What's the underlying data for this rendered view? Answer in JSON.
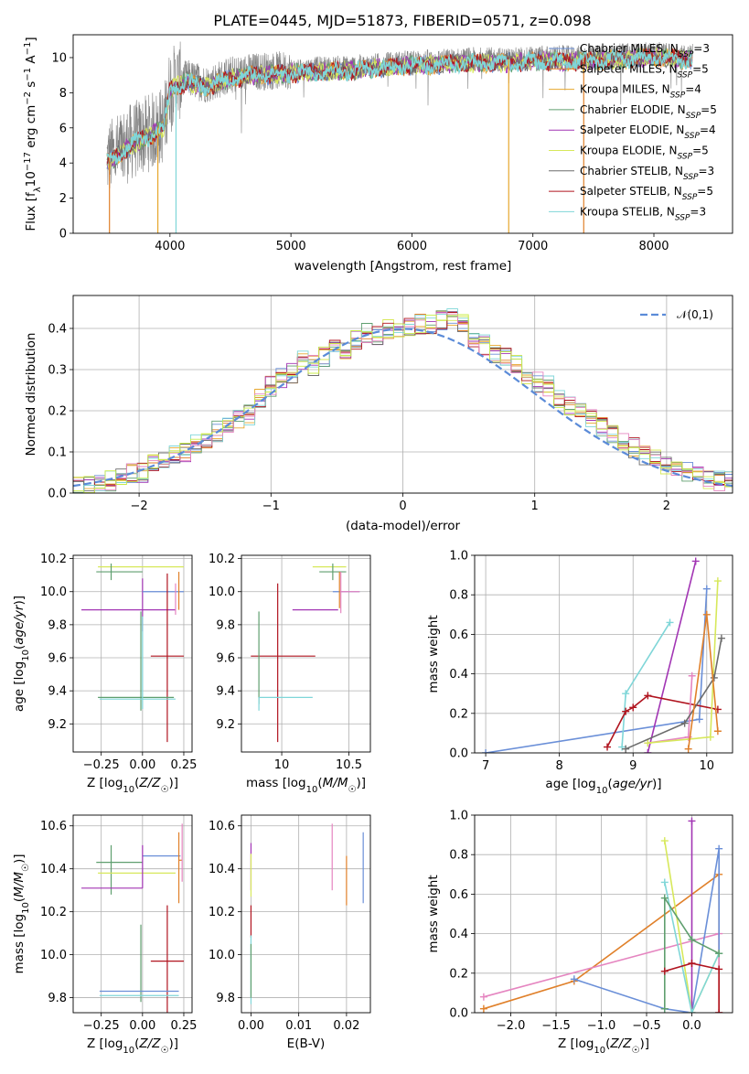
{
  "title": "PLATE=0445, MJD=51873, FIBERID=0571, z=0.098",
  "colors": {
    "Chabrier MILES": "#6a8fd8",
    "Salpeter MILES": "#e0802a",
    "Kroupa MILES": "#e7a72e",
    "Chabrier ELODIE": "#5f9f6f",
    "Salpeter ELODIE": "#a235b4",
    "Kroupa ELODIE": "#d7e85b",
    "Chabrier STELIB": "#6c6c6c",
    "Salpeter STELIB": "#b0141f",
    "Kroupa STELIB": "#7fd6d8",
    "data": "#808080",
    "pink": "#e585c0",
    "lime": "#c8ec4a",
    "normal": "#5b8bd8"
  },
  "chart_data": [
    {
      "type": "line",
      "id": "spectrum",
      "title": "PLATE=0445, MJD=51873, FIBERID=0571, z=0.098",
      "xlabel": "wavelength [Angstrom, rest frame]",
      "ylabel": "Flux [f_λ10^-17 erg cm^-2 s^-1 A^-1]",
      "xlim": [
        3200,
        8650
      ],
      "ylim": [
        0,
        11.3
      ],
      "xticks": [
        4000,
        5000,
        6000,
        7000,
        8000
      ],
      "yticks": [
        0,
        2,
        4,
        6,
        8,
        10
      ],
      "legend_position": "upper right",
      "legend": [
        {
          "label": "Chabrier MILES, N_SSP=3",
          "color": "#6a8fd8"
        },
        {
          "label": "Salpeter MILES, N_SSP=5",
          "color": "#e0802a"
        },
        {
          "label": "Kroupa MILES, N_SSP=4",
          "color": "#e7a72e"
        },
        {
          "label": "Chabrier ELODIE, N_SSP=5",
          "color": "#5f9f6f"
        },
        {
          "label": "Salpeter ELODIE, N_SSP=4",
          "color": "#a235b4"
        },
        {
          "label": "Kroupa ELODIE, N_SSP=5",
          "color": "#d7e85b"
        },
        {
          "label": "Chabrier STELIB, N_SSP=3",
          "color": "#6c6c6c"
        },
        {
          "label": "Salpeter STELIB, N_SSP=5",
          "color": "#b0141f"
        },
        {
          "label": "Kroupa STELIB, N_SSP=3",
          "color": "#7fd6d8"
        }
      ],
      "continuum": {
        "x": [
          3480,
          3600,
          3700,
          3850,
          3950,
          4000,
          4050,
          4150,
          4300,
          4500,
          4700,
          5000,
          5300,
          5600,
          5900,
          6200,
          6500,
          6800,
          7100,
          7400,
          7700,
          8000,
          8300
        ],
        "y": [
          4.2,
          4.8,
          5.3,
          5.8,
          6.2,
          8.4,
          8.6,
          8.8,
          8.5,
          9.0,
          9.2,
          9.3,
          9.4,
          9.5,
          9.7,
          9.8,
          9.9,
          9.9,
          10.0,
          10.0,
          10.1,
          10.2,
          10.1
        ]
      }
    },
    {
      "type": "bar",
      "id": "residuals",
      "xlabel": "(data-model)/error",
      "ylabel": "Normed distribution",
      "xlim": [
        -2.5,
        2.5
      ],
      "ylim": [
        0,
        0.48
      ],
      "xticks": [
        -2,
        -1,
        0,
        1,
        2
      ],
      "yticks": [
        0.0,
        0.1,
        0.2,
        0.3,
        0.4
      ],
      "legend": [
        {
          "label": "𝒩(0,1)",
          "color": "#5b8bd8"
        }
      ],
      "bin_width": 0.1,
      "bin_start": -2.5,
      "histogram_envelope": [
        0.02,
        0.02,
        0.03,
        0.03,
        0.04,
        0.05,
        0.05,
        0.07,
        0.08,
        0.09,
        0.1,
        0.12,
        0.13,
        0.15,
        0.17,
        0.18,
        0.19,
        0.23,
        0.26,
        0.28,
        0.29,
        0.32,
        0.31,
        0.33,
        0.35,
        0.34,
        0.37,
        0.39,
        0.38,
        0.4,
        0.4,
        0.4,
        0.41,
        0.41,
        0.42,
        0.43,
        0.41,
        0.38,
        0.36,
        0.34,
        0.33,
        0.31,
        0.29,
        0.27,
        0.26,
        0.23,
        0.21,
        0.2,
        0.18,
        0.16,
        0.14,
        0.12,
        0.11,
        0.09,
        0.08,
        0.07,
        0.06,
        0.05,
        0.04,
        0.03,
        0.03,
        0.03
      ]
    },
    {
      "type": "scatter",
      "id": "age_vs_Z",
      "xlabel": "Z [log10(Z/Z☉)]",
      "ylabel": "age  [log10(age/yr)]",
      "xlim": [
        -0.42,
        0.3
      ],
      "ylim": [
        9.03,
        10.22
      ],
      "xticks": [
        -0.25,
        0.0,
        0.25
      ],
      "xticklabels": [
        "−0.25",
        "0.00",
        "0.25"
      ],
      "yticks": [
        9.2,
        9.4,
        9.6,
        9.8,
        10.0,
        10.2
      ],
      "errorbars": [
        {
          "color": "#d7e85b",
          "x": 0.0,
          "xerr": [
            0.27,
            0.25
          ],
          "y": 10.15,
          "yerr": [
            0.0,
            0.0
          ]
        },
        {
          "color": "#5f9f6f",
          "x": -0.19,
          "xerr": [
            0.09,
            0.19
          ],
          "y": 10.12,
          "yerr": [
            0.05,
            0.05
          ]
        },
        {
          "color": "#a235b4",
          "x": 0.0,
          "xerr": [
            0.37,
            0.2
          ],
          "y": 9.89,
          "yerr": [
            0.13,
            0.19
          ]
        },
        {
          "color": "#6a8fd8",
          "x": 0.05,
          "xerr": [
            0.05,
            0.2
          ],
          "y": 10.0,
          "yerr": [
            0.0,
            0.0
          ]
        },
        {
          "color": "#e0802a",
          "x": 0.22,
          "xerr": [
            0.0,
            0.0
          ],
          "y": 10.0,
          "yerr": [
            0.11,
            0.12
          ]
        },
        {
          "color": "#e585c0",
          "x": 0.2,
          "xerr": [
            0.0,
            0.0
          ],
          "y": 10.0,
          "yerr": [
            0.14,
            0.05
          ]
        },
        {
          "color": "#b0141f",
          "x": 0.15,
          "xerr": [
            0.1,
            0.1
          ],
          "y": 9.61,
          "yerr": [
            0.52,
            0.5
          ]
        },
        {
          "color": "#5f9f6f",
          "x": -0.01,
          "xerr": [
            0.26,
            0.2
          ],
          "y": 9.36,
          "yerr": [
            0.08,
            0.52
          ]
        },
        {
          "color": "#7fd6d8",
          "x": 0.0,
          "xerr": [
            0.26,
            0.2
          ],
          "y": 9.35,
          "yerr": [
            0.06,
            0.5
          ]
        }
      ]
    },
    {
      "type": "scatter",
      "id": "age_vs_mass",
      "xlabel": "mass [log10(M/M☉)]",
      "ylabel": "",
      "xlim": [
        9.7,
        10.66
      ],
      "ylim": [
        9.03,
        10.22
      ],
      "xticks": [
        10.0,
        10.5
      ],
      "yticks": [
        9.2,
        9.4,
        9.6,
        9.8,
        10.0,
        10.2
      ],
      "errorbars": [
        {
          "color": "#d7e85b",
          "x": 10.38,
          "xerr": [
            0.15,
            0.1
          ],
          "y": 10.15,
          "yerr": [
            0.0,
            0.0
          ]
        },
        {
          "color": "#5f9f6f",
          "x": 10.38,
          "xerr": [
            0.1,
            0.1
          ],
          "y": 10.12,
          "yerr": [
            0.05,
            0.05
          ]
        },
        {
          "color": "#a235b4",
          "x": 10.32,
          "xerr": [
            0.24,
            0.1
          ],
          "y": 9.89,
          "yerr": [
            0.0,
            0.0
          ]
        },
        {
          "color": "#6a8fd8",
          "x": 10.48,
          "xerr": [
            0.1,
            0.1
          ],
          "y": 10.0,
          "yerr": [
            0.0,
            0.0
          ]
        },
        {
          "color": "#e0802a",
          "x": 10.43,
          "xerr": [
            0.0,
            0.0
          ],
          "y": 10.0,
          "yerr": [
            0.1,
            0.12
          ]
        },
        {
          "color": "#e585c0",
          "x": 10.44,
          "xerr": [
            0.0,
            0.14
          ],
          "y": 10.0,
          "yerr": [
            0.13,
            0.12
          ]
        },
        {
          "color": "#b0141f",
          "x": 9.97,
          "xerr": [
            0.2,
            0.28
          ],
          "y": 9.61,
          "yerr": [
            0.52,
            0.44
          ]
        },
        {
          "color": "#5f9f6f",
          "x": 9.83,
          "xerr": [
            0.0,
            0.0
          ],
          "y": 9.6,
          "yerr": [
            0.28,
            0.28
          ]
        },
        {
          "color": "#7fd6d8",
          "x": 9.83,
          "xerr": [
            0.0,
            0.4
          ],
          "y": 9.36,
          "yerr": [
            0.08,
            0.0
          ]
        }
      ]
    },
    {
      "type": "line",
      "id": "mass_weight_vs_age",
      "xlabel": "age  [log10(age/yr)]",
      "ylabel": "mass weight",
      "xlim": [
        6.85,
        10.35
      ],
      "ylim": [
        0.0,
        1.0
      ],
      "xticks": [
        7,
        8,
        9,
        10
      ],
      "yticks": [
        0.0,
        0.2,
        0.4,
        0.6,
        0.8,
        1.0
      ],
      "series": [
        {
          "color": "#6a8fd8",
          "x": [
            7.0,
            9.9,
            10.0
          ],
          "y": [
            0.0,
            0.17,
            0.83
          ]
        },
        {
          "color": "#7fd6d8",
          "x": [
            8.85,
            8.9,
            9.5
          ],
          "y": [
            0.03,
            0.3,
            0.66
          ]
        },
        {
          "color": "#a235b4",
          "x": [
            9.2,
            9.85
          ],
          "y": [
            0.0,
            0.97
          ]
        },
        {
          "color": "#b0141f",
          "x": [
            8.65,
            8.9,
            9.0,
            9.2,
            10.15
          ],
          "y": [
            0.03,
            0.21,
            0.23,
            0.29,
            0.22
          ]
        },
        {
          "color": "#e585c0",
          "x": [
            9.2,
            9.75,
            9.8
          ],
          "y": [
            0.05,
            0.08,
            0.39
          ]
        },
        {
          "color": "#d7e85b",
          "x": [
            9.2,
            10.05,
            10.15
          ],
          "y": [
            0.05,
            0.08,
            0.87
          ]
        },
        {
          "color": "#6c6c6c",
          "x": [
            8.9,
            9.7,
            10.1,
            10.2
          ],
          "y": [
            0.02,
            0.15,
            0.38,
            0.58
          ]
        },
        {
          "color": "#e0802a",
          "x": [
            9.75,
            10.0,
            10.15
          ],
          "y": [
            0.02,
            0.7,
            0.11
          ]
        }
      ]
    },
    {
      "type": "scatter",
      "id": "mass_vs_Z",
      "xlabel": "Z [log10(Z/Z☉)]",
      "ylabel": "mass [log10(M/M☉)]",
      "xlim": [
        -0.42,
        0.3
      ],
      "ylim": [
        9.73,
        10.65
      ],
      "xticks": [
        -0.25,
        0.0,
        0.25
      ],
      "xticklabels": [
        "−0.25",
        "0.00",
        "0.25"
      ],
      "yticks": [
        9.8,
        10.0,
        10.2,
        10.4,
        10.6
      ],
      "errorbars": [
        {
          "color": "#6a8fd8",
          "x": 0.05,
          "xerr": [
            0.05,
            0.18
          ],
          "y": 10.46,
          "yerr": [
            0.0,
            0.0
          ]
        },
        {
          "color": "#e0802a",
          "x": 0.22,
          "xerr": [
            0.0,
            0.02
          ],
          "y": 10.44,
          "yerr": [
            0.2,
            0.13
          ]
        },
        {
          "color": "#5f9f6f",
          "x": -0.19,
          "xerr": [
            0.09,
            0.19
          ],
          "y": 10.43,
          "yerr": [
            0.15,
            0.08
          ]
        },
        {
          "color": "#d7e85b",
          "x": 0.0,
          "xerr": [
            0.27,
            0.2
          ],
          "y": 10.38,
          "yerr": [
            0.0,
            0.0
          ]
        },
        {
          "color": "#a235b4",
          "x": 0.0,
          "xerr": [
            0.37,
            0.0
          ],
          "y": 10.31,
          "yerr": [
            0.0,
            0.2
          ]
        },
        {
          "color": "#e585c0",
          "x": 0.24,
          "xerr": [
            0.0,
            0.0
          ],
          "y": 10.44,
          "yerr": [
            0.1,
            0.17
          ]
        },
        {
          "color": "#b0141f",
          "x": 0.15,
          "xerr": [
            0.1,
            0.1
          ],
          "y": 9.97,
          "yerr": [
            0.25,
            0.26
          ]
        },
        {
          "color": "#5f9f6f",
          "x": -0.01,
          "xerr": [
            0.0,
            0.0
          ],
          "y": 9.95,
          "yerr": [
            0.17,
            0.19
          ]
        },
        {
          "color": "#6a8fd8",
          "x": 0.0,
          "xerr": [
            0.26,
            0.22
          ],
          "y": 9.83,
          "yerr": [
            0.0,
            0.0
          ]
        },
        {
          "color": "#7fd6d8",
          "x": 0.0,
          "xerr": [
            0.26,
            0.22
          ],
          "y": 9.81,
          "yerr": [
            0.0,
            0.0
          ]
        }
      ]
    },
    {
      "type": "scatter",
      "id": "mass_vs_EBV",
      "xlabel": "E(B-V)",
      "ylabel": "",
      "xlim": [
        -0.002,
        0.025
      ],
      "ylim": [
        9.73,
        10.65
      ],
      "xticks": [
        0.0,
        0.01,
        0.02
      ],
      "xticklabels": [
        "0.00",
        "0.01",
        "0.02"
      ],
      "yticks": [
        9.8,
        10.0,
        10.2,
        10.4,
        10.6
      ],
      "errorbars": [
        {
          "color": "#a235b4",
          "x": 0.0,
          "y": 10.4,
          "yerr": [
            0.1,
            0.12
          ]
        },
        {
          "color": "#d7e85b",
          "x": 0.0,
          "y": 10.35,
          "yerr": [
            0.08,
            0.12
          ]
        },
        {
          "color": "#b0141f",
          "x": 0.0,
          "y": 10.18,
          "yerr": [
            0.1,
            0.05
          ]
        },
        {
          "color": "#7fd6d8",
          "x": 0.0,
          "y": 9.95,
          "yerr": [
            0.18,
            0.14
          ]
        },
        {
          "color": "#5f9f6f",
          "x": 0.0,
          "y": 9.9,
          "yerr": [
            0.1,
            0.15
          ]
        },
        {
          "color": "#e585c0",
          "x": 0.017,
          "y": 10.45,
          "yerr": [
            0.15,
            0.16
          ]
        },
        {
          "color": "#e0802a",
          "x": 0.02,
          "y": 10.38,
          "yerr": [
            0.15,
            0.08
          ]
        },
        {
          "color": "#6a8fd8",
          "x": 0.0235,
          "y": 10.4,
          "yerr": [
            0.16,
            0.17
          ]
        }
      ]
    },
    {
      "type": "line",
      "id": "mass_weight_vs_Z",
      "xlabel": "Z [log10(Z/Z☉)]",
      "ylabel": "mass weight",
      "xlim": [
        -2.4,
        0.45
      ],
      "ylim": [
        0.0,
        1.0
      ],
      "xticks": [
        -2.0,
        -1.5,
        -1.0,
        -0.5,
        0.0
      ],
      "xticklabels": [
        "−2.0",
        "−1.5",
        "−1.0",
        "−0.5",
        "0.0"
      ],
      "yticks": [
        0.0,
        0.2,
        0.4,
        0.6,
        0.8,
        1.0
      ],
      "series": [
        {
          "color": "#e0802a",
          "x": [
            -2.3,
            -1.3,
            0.3,
            0.3
          ],
          "y": [
            0.02,
            0.16,
            0.7,
            0.0
          ]
        },
        {
          "color": "#e585c0",
          "x": [
            -2.3,
            0.3,
            0.3
          ],
          "y": [
            0.08,
            0.4,
            0.0
          ]
        },
        {
          "color": "#6a8fd8",
          "x": [
            -1.3,
            -0.3,
            0.0,
            0.3,
            0.3
          ],
          "y": [
            0.17,
            0.02,
            0.0,
            0.83,
            0.3
          ]
        },
        {
          "color": "#a235b4",
          "x": [
            0.0,
            0.0
          ],
          "y": [
            0.0,
            0.97
          ]
        },
        {
          "color": "#d7e85b",
          "x": [
            -0.3,
            0.0,
            0.3
          ],
          "y": [
            0.87,
            0.0,
            0.3
          ]
        },
        {
          "color": "#7fd6d8",
          "x": [
            -0.3,
            0.0,
            0.3
          ],
          "y": [
            0.66,
            0.0,
            0.3
          ]
        },
        {
          "color": "#5f9f6f",
          "x": [
            -0.3,
            -0.3,
            0.0,
            0.3
          ],
          "y": [
            0.02,
            0.58,
            0.37,
            0.3
          ]
        },
        {
          "color": "#b0141f",
          "x": [
            -0.3,
            0.0,
            0.3,
            0.3
          ],
          "y": [
            0.21,
            0.25,
            0.22,
            0.0
          ]
        }
      ]
    }
  ]
}
